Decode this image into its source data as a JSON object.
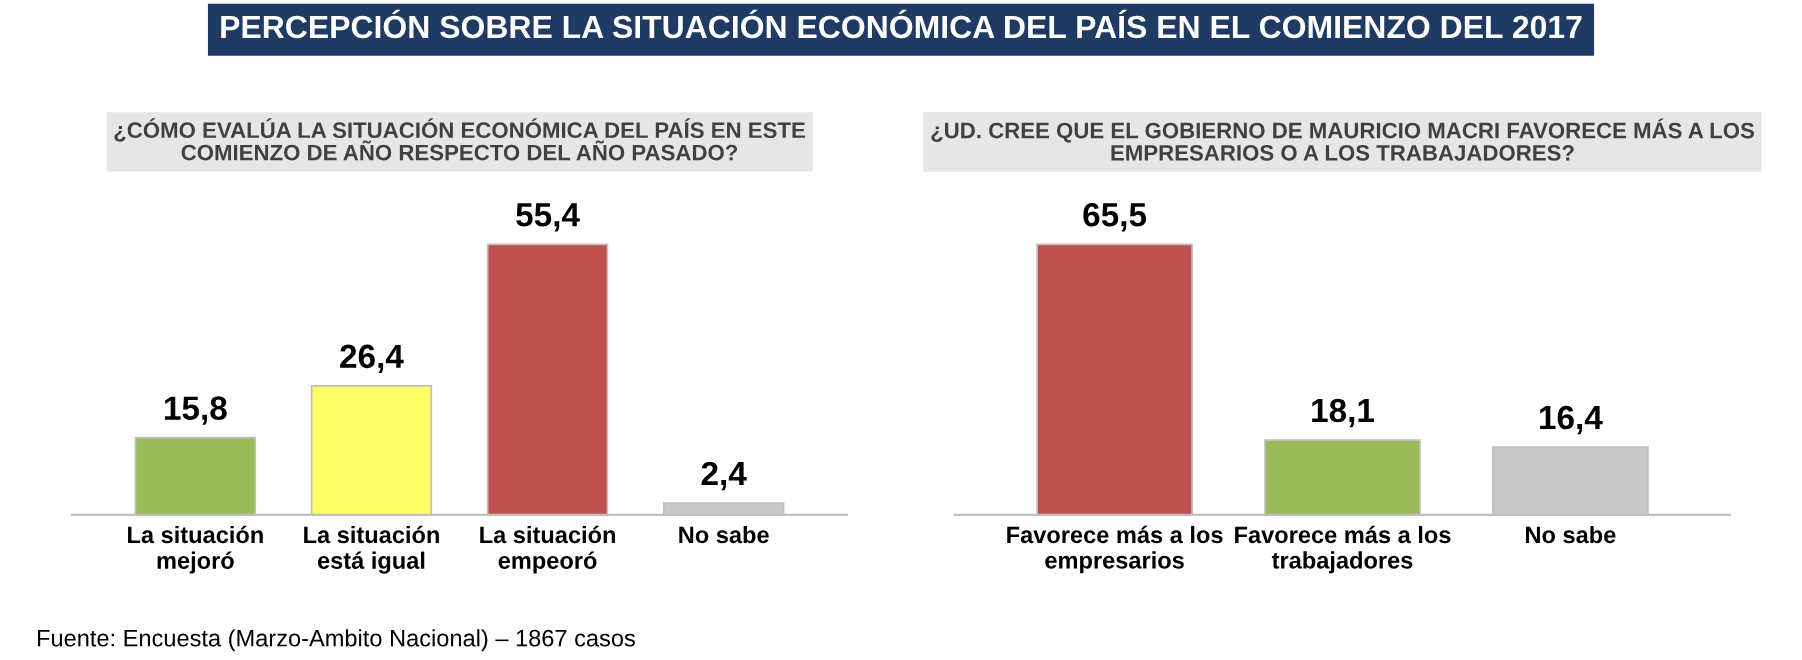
{
  "chart_data": [
    {
      "type": "bar",
      "title": "PERCEPCIÓN SOBRE LA SITUACIÓN ECONÓMICA DEL PAÍS EN EL COMIENZO DEL 2017",
      "subtitle": "¿CÓMO EVALÚA LA SITUACIÓN ECONÓMICA DEL PAÍS EN ESTE\nCOMIENZO DE AÑO RESPECTO DEL AÑO PASADO?",
      "categories": [
        "La situación\nmejoró",
        "La situación\nestá igual",
        "La situación\nempeoró",
        "No sabe"
      ],
      "values": [
        15.8,
        26.4,
        55.4,
        2.4
      ],
      "value_labels": [
        "15,8",
        "26,4",
        "55,4",
        "2,4"
      ],
      "colors": [
        "#9bbb59",
        "#ffff66",
        "#c0504d",
        "#c8c8c8"
      ],
      "annotations": [
        "Fuente: Encuesta (Marzo-Ambito Nacional) – 1867 casos"
      ]
    },
    {
      "type": "bar",
      "subtitle": "¿UD. CREE QUE EL GOBIERNO DE MAURICIO MACRI FAVORECE MÁS A LOS\nEMPRESARIOS O A LOS TRABAJADORES?",
      "categories": [
        "Favorece más a los\nempresarios",
        "Favorece más a los\ntrabajadores",
        "No sabe"
      ],
      "values": [
        65.5,
        18.1,
        16.4
      ],
      "value_labels": [
        "65,5",
        "18,1",
        "16,4"
      ],
      "colors": [
        "#c0504d",
        "#9bbb59",
        "#c8c8c8"
      ]
    }
  ]
}
